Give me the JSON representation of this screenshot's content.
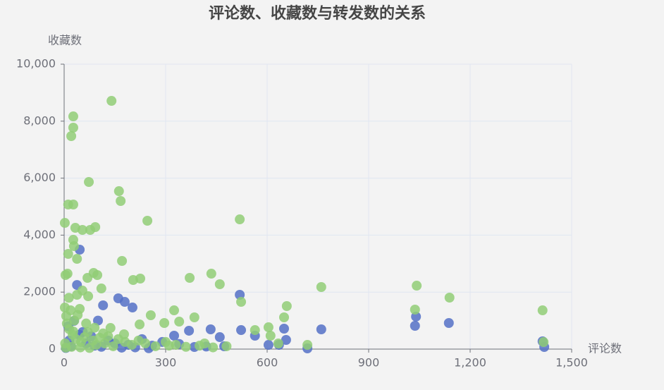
{
  "chart_data": {
    "type": "scatter",
    "title": "评论数、收藏数与转发数的关系",
    "x_label": "评论数",
    "y_label": "收藏数",
    "xlim": [
      0,
      1500
    ],
    "xticks": [
      0,
      300,
      600,
      900,
      {
        "value": 1200,
        "label": "1,200"
      },
      {
        "value": 1500,
        "label": "1,500"
      }
    ],
    "ylim": [
      0,
      10000
    ],
    "yticks": [
      0,
      {
        "value": 2000,
        "label": "2,000"
      },
      {
        "value": 4000,
        "label": "4,000"
      },
      {
        "value": 6000,
        "label": "6,000"
      },
      {
        "value": 8000,
        "label": "8,000"
      },
      {
        "value": 10000,
        "label": "10,000"
      }
    ],
    "grid": true,
    "series": [
      {
        "color": "#5470c6",
        "x": [
          46,
          519,
          160,
          179,
          115,
          202,
          1040,
          1037,
          1137,
          1414,
          1419,
          760,
          650,
          523,
          433,
          369,
          564,
          656,
          604,
          635,
          719,
          460,
          473,
          385,
          325,
          29,
          38,
          12,
          55,
          80,
          100,
          130,
          150,
          190,
          230,
          260,
          290,
          20,
          65,
          110,
          170,
          210,
          250,
          340,
          420,
          5,
          15,
          45,
          90
        ],
        "y": [
          3490,
          1906,
          1782,
          1658,
          1535,
          1460,
          1139,
          817,
          916,
          272,
          74,
          693,
          718,
          668,
          693,
          644,
          470,
          322,
          148,
          148,
          25,
          420,
          99,
          74,
          470,
          990,
          2250,
          800,
          600,
          450,
          1000,
          300,
          200,
          150,
          350,
          120,
          250,
          100,
          200,
          80,
          50,
          60,
          30,
          180,
          90,
          40,
          300,
          500,
          120
        ]
      },
      {
        "color": "#91cc75",
        "x": [
          140,
          27,
          27,
          21,
          73,
          162,
          167,
          12,
          27,
          246,
          519,
          2,
          33,
          54,
          92,
          77,
          27,
          29,
          12,
          38,
          171,
          10,
          4,
          87,
          69,
          98,
          435,
          371,
          204,
          225,
          460,
          760,
          1042,
          110,
          54,
          38,
          71,
          1139,
          523,
          658,
          325,
          1037,
          1414,
          385,
          650,
          256,
          296,
          340,
          223,
          604,
          564,
          610,
          137,
          177,
          719,
          633,
          1417,
          310,
          415,
          2,
          19,
          6,
          46,
          27,
          60,
          8,
          15,
          25,
          35,
          50,
          70,
          85,
          95,
          105,
          120,
          145,
          160,
          180,
          200,
          220,
          240,
          270,
          300,
          330,
          360,
          400,
          440,
          480,
          14,
          40,
          65,
          90,
          115,
          130,
          5,
          22,
          48,
          75,
          3,
          30
        ],
        "y": [
          8712,
          8168,
          7772,
          7475,
          5866,
          5544,
          5198,
          5074,
          5074,
          4505,
          4554,
          4430,
          4257,
          4183,
          4282,
          4183,
          3836,
          3614,
          3341,
          3168,
          3094,
          2648,
          2599,
          2673,
          2500,
          2599,
          2648,
          2500,
          2426,
          2475,
          2277,
          2178,
          2227,
          2128,
          2054,
          1906,
          1856,
          1807,
          1658,
          1510,
          1361,
          1386,
          1361,
          1114,
          1114,
          1188,
          916,
          965,
          866,
          767,
          668,
          470,
          742,
          520,
          148,
          198,
          247,
          124,
          198,
          1460,
          1361,
          1163,
          1411,
          619,
          420,
          900,
          700,
          500,
          350,
          250,
          600,
          300,
          150,
          400,
          200,
          100,
          350,
          250,
          150,
          300,
          200,
          100,
          250,
          150,
          80,
          120,
          60,
          100,
          1800,
          1200,
          900,
          750,
          550,
          450,
          50,
          80,
          60,
          40,
          200,
          1000
        ]
      }
    ]
  }
}
